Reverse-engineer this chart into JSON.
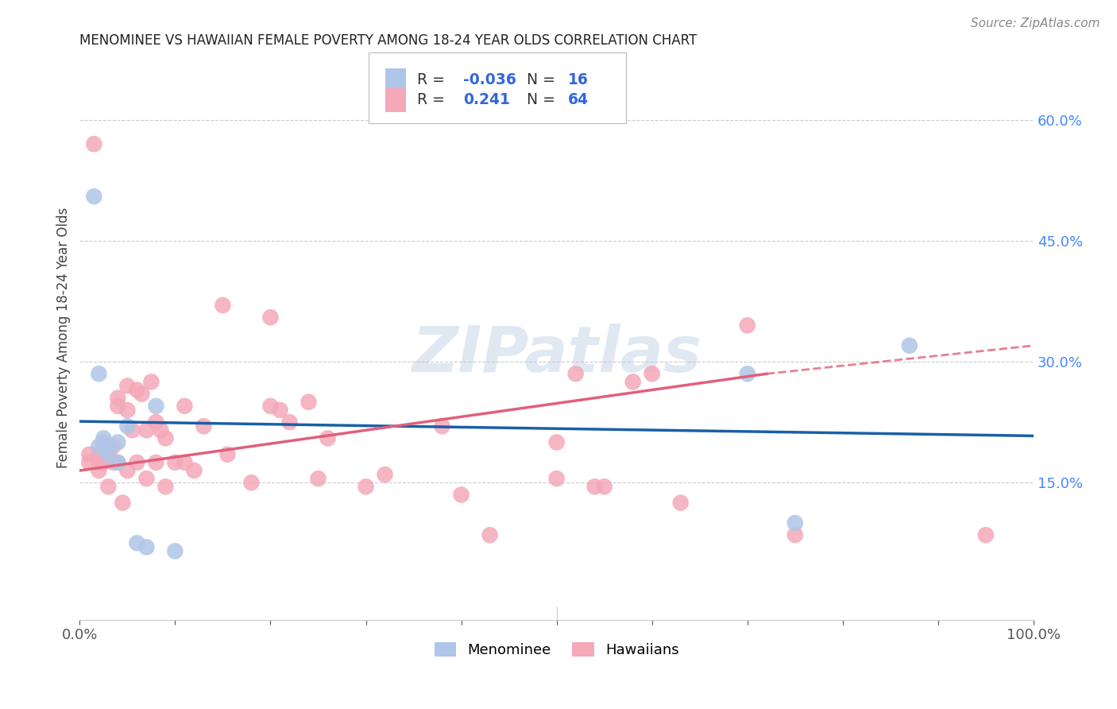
{
  "title": "MENOMINEE VS HAWAIIAN FEMALE POVERTY AMONG 18-24 YEAR OLDS CORRELATION CHART",
  "source": "Source: ZipAtlas.com",
  "ylabel": "Female Poverty Among 18-24 Year Olds",
  "xlim": [
    0.0,
    1.0
  ],
  "ylim": [
    -0.02,
    0.68
  ],
  "xticks": [
    0.0,
    0.1,
    0.2,
    0.3,
    0.4,
    0.5,
    0.6,
    0.7,
    0.8,
    0.9,
    1.0
  ],
  "xticklabels": [
    "0.0%",
    "",
    "",
    "",
    "",
    "",
    "",
    "",
    "",
    "",
    "100.0%"
  ],
  "yticks": [
    0.15,
    0.3,
    0.45,
    0.6
  ],
  "yticklabels": [
    "15.0%",
    "30.0%",
    "45.0%",
    "60.0%"
  ],
  "grid_color": "#cccccc",
  "background_color": "#ffffff",
  "watermark": "ZIPatlas",
  "legend_R_menominee": "-0.036",
  "legend_N_menominee": "16",
  "legend_R_hawaiian": "0.241",
  "legend_N_hawaiian": "64",
  "menominee_color": "#aec6e8",
  "hawaiian_color": "#f4a8b8",
  "menominee_line_color": "#1a5fa8",
  "hawaiian_line_color": "#e0607a",
  "menominee_line": [
    0.0,
    0.226,
    1.0,
    0.208
  ],
  "hawaiian_line_solid": [
    0.0,
    0.165,
    0.72,
    0.285
  ],
  "hawaiian_line_dash": [
    0.72,
    0.285,
    1.0,
    0.32
  ],
  "menominee_x": [
    0.015,
    0.02,
    0.02,
    0.025,
    0.03,
    0.03,
    0.04,
    0.04,
    0.05,
    0.06,
    0.07,
    0.08,
    0.1,
    0.7,
    0.75,
    0.87
  ],
  "menominee_y": [
    0.505,
    0.285,
    0.195,
    0.205,
    0.195,
    0.185,
    0.2,
    0.175,
    0.22,
    0.075,
    0.07,
    0.245,
    0.065,
    0.285,
    0.1,
    0.32
  ],
  "hawaiian_x": [
    0.01,
    0.01,
    0.015,
    0.02,
    0.02,
    0.02,
    0.025,
    0.025,
    0.025,
    0.03,
    0.03,
    0.03,
    0.035,
    0.035,
    0.04,
    0.04,
    0.04,
    0.045,
    0.05,
    0.05,
    0.05,
    0.055,
    0.06,
    0.06,
    0.065,
    0.07,
    0.07,
    0.075,
    0.08,
    0.08,
    0.085,
    0.09,
    0.09,
    0.1,
    0.11,
    0.11,
    0.12,
    0.13,
    0.15,
    0.155,
    0.18,
    0.2,
    0.2,
    0.21,
    0.22,
    0.24,
    0.25,
    0.26,
    0.3,
    0.32,
    0.38,
    0.4,
    0.43,
    0.5,
    0.5,
    0.52,
    0.54,
    0.55,
    0.58,
    0.6,
    0.63,
    0.7,
    0.75,
    0.95
  ],
  "hawaiian_y": [
    0.185,
    0.175,
    0.57,
    0.185,
    0.175,
    0.165,
    0.2,
    0.185,
    0.175,
    0.195,
    0.185,
    0.145,
    0.195,
    0.175,
    0.255,
    0.245,
    0.175,
    0.125,
    0.27,
    0.24,
    0.165,
    0.215,
    0.265,
    0.175,
    0.26,
    0.215,
    0.155,
    0.275,
    0.225,
    0.175,
    0.215,
    0.205,
    0.145,
    0.175,
    0.245,
    0.175,
    0.165,
    0.22,
    0.37,
    0.185,
    0.15,
    0.355,
    0.245,
    0.24,
    0.225,
    0.25,
    0.155,
    0.205,
    0.145,
    0.16,
    0.22,
    0.135,
    0.085,
    0.2,
    0.155,
    0.285,
    0.145,
    0.145,
    0.275,
    0.285,
    0.125,
    0.345,
    0.085,
    0.085
  ]
}
